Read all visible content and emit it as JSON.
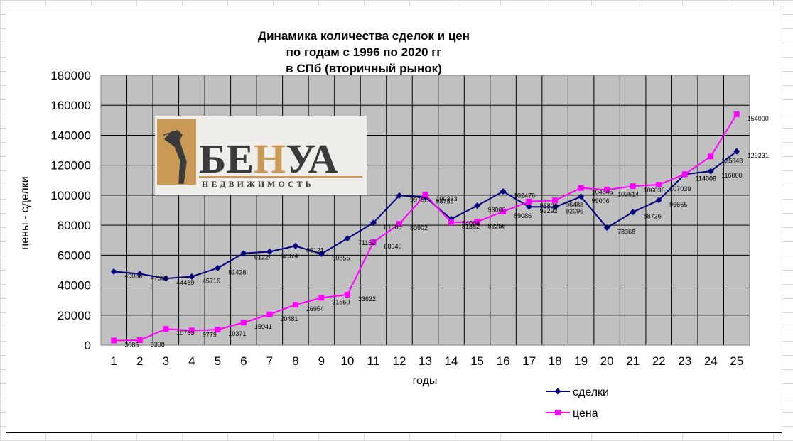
{
  "chart_data": {
    "type": "line",
    "title_lines": [
      "Динамика количества сделок и цен",
      "по годам с 1996 по 2020 гг",
      "в СПб (вторичный рынок)"
    ],
    "xlabel": "годы",
    "ylabel": "цены - сделки",
    "categories": [
      "1",
      "2",
      "3",
      "4",
      "5",
      "6",
      "7",
      "8",
      "9",
      "10",
      "11",
      "12",
      "13",
      "14",
      "15",
      "16",
      "17",
      "18",
      "19",
      "20",
      "21",
      "22",
      "23",
      "24",
      "25"
    ],
    "ylim": [
      0,
      180000
    ],
    "yticks": [
      "0",
      "20000",
      "40000",
      "60000",
      "80000",
      "100000",
      "120000",
      "140000",
      "160000",
      "180000"
    ],
    "grid": true,
    "legend_position": "bottom-right",
    "series": [
      {
        "name": "сделки",
        "color": "#000080",
        "marker": "diamond",
        "values": [
          49068,
          47566,
          44489,
          45716,
          51428,
          61224,
          62374,
          66121,
          60855,
          71162,
          81588,
          99782,
          98785,
          84066,
          93000,
          102476,
          92292,
          92096,
          99006,
          78368,
          88726,
          96665,
          114008,
          116000,
          129231
        ],
        "labels": [
          "49068",
          "47566",
          "44489",
          "45716",
          "51428",
          "61224",
          "62374",
          "66121",
          "60855",
          "71162",
          "81588",
          "99782",
          "98785",
          "84066",
          "93000",
          "102476",
          "92292",
          "92096",
          "99006",
          "78368",
          "88726",
          "96665",
          "114008",
          "116000",
          "129231"
        ]
      },
      {
        "name": "цена",
        "color": "#ff00ff",
        "marker": "square",
        "values": [
          3085,
          3308,
          10783,
          9779,
          10371,
          15041,
          20481,
          26954,
          31560,
          33632,
          68640,
          80902,
          100333,
          81882,
          82256,
          89086,
          95800,
          96488,
          104845,
          103614,
          106036,
          107039,
          114008,
          125848,
          154000
        ],
        "labels": [
          "3085",
          "3308",
          "10783",
          "9779",
          "10371",
          "15041",
          "20481",
          "26954",
          "31560",
          "33632",
          "68640",
          "80902",
          "100333",
          "81882",
          "82256",
          "89086",
          "95800",
          "96488",
          "104845",
          "103614",
          "106036",
          "107039",
          "114008",
          "125848",
          "154000"
        ]
      }
    ]
  },
  "logo": {
    "main": "БЕНУА",
    "sub": "НЕДВИЖИМОСТЬ",
    "colors": {
      "dark": "#3a3a3a",
      "accent": "#c89a55",
      "panel": "#f0eeeb"
    }
  },
  "colors": {
    "plot_bg": "#c0c0c0",
    "grid": "#000000"
  }
}
